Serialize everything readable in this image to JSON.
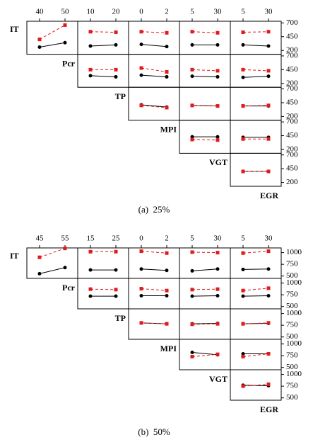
{
  "chart_data": [
    {
      "type": "interaction_matrix",
      "caption": "(a)  25%",
      "factors": [
        "IT",
        "Pcr",
        "TP",
        "MPI",
        "VGT",
        "EGR"
      ],
      "xlevels": [
        [
          40,
          50
        ],
        [
          10,
          20
        ],
        [
          0,
          2
        ],
        [
          5,
          30
        ],
        [
          5,
          30
        ]
      ],
      "ylim": [
        130,
        730
      ],
      "yticks": [
        200,
        450,
        700
      ],
      "series": [
        {
          "color": "#000000",
          "marker": "circle",
          "dash": false
        },
        {
          "color": "#e31a1c",
          "marker": "square",
          "dash": true
        }
      ],
      "panels": [
        {
          "row": 0,
          "col": 0,
          "values": [
            [
              260,
              340
            ],
            [
              400,
              660
            ]
          ]
        },
        {
          "row": 0,
          "col": 1,
          "values": [
            [
              280,
              300
            ],
            [
              540,
              530
            ]
          ]
        },
        {
          "row": 0,
          "col": 2,
          "values": [
            [
              310,
              270
            ],
            [
              540,
              520
            ]
          ]
        },
        {
          "row": 0,
          "col": 3,
          "values": [
            [
              300,
              300
            ],
            [
              540,
              520
            ]
          ]
        },
        {
          "row": 0,
          "col": 4,
          "values": [
            [
              300,
              280
            ],
            [
              530,
              540
            ]
          ]
        },
        {
          "row": 1,
          "col": 1,
          "values": [
            [
              340,
              320
            ],
            [
              450,
              450
            ]
          ]
        },
        {
          "row": 1,
          "col": 2,
          "values": [
            [
              350,
              320
            ],
            [
              480,
              410
            ]
          ]
        },
        {
          "row": 1,
          "col": 3,
          "values": [
            [
              330,
              320
            ],
            [
              450,
              430
            ]
          ]
        },
        {
          "row": 1,
          "col": 4,
          "values": [
            [
              310,
              330
            ],
            [
              450,
              430
            ]
          ]
        },
        {
          "row": 2,
          "col": 2,
          "values": [
            [
              410,
              370
            ],
            [
              400,
              360
            ]
          ]
        },
        {
          "row": 2,
          "col": 3,
          "values": [
            [
              400,
              390
            ],
            [
              400,
              390
            ]
          ]
        },
        {
          "row": 2,
          "col": 4,
          "values": [
            [
              390,
              390
            ],
            [
              390,
              400
            ]
          ]
        },
        {
          "row": 3,
          "col": 3,
          "values": [
            [
              430,
              430
            ],
            [
              380,
              370
            ]
          ]
        },
        {
          "row": 3,
          "col": 4,
          "values": [
            [
              420,
              420
            ],
            [
              390,
              390
            ]
          ]
        },
        {
          "row": 4,
          "col": 4,
          "values": [
            [
              400,
              400
            ],
            [
              400,
              400
            ]
          ]
        }
      ]
    },
    {
      "type": "interaction_matrix",
      "caption": "(b)  50%",
      "factors": [
        "IT",
        "Pcr",
        "TP",
        "MPI",
        "VGT",
        "EGR"
      ],
      "xlevels": [
        [
          45,
          55
        ],
        [
          15,
          25
        ],
        [
          0,
          2
        ],
        [
          5,
          30
        ],
        [
          5,
          30
        ]
      ],
      "ylim": [
        450,
        1100
      ],
      "yticks": [
        500,
        750,
        1000
      ],
      "series": [
        {
          "color": "#000000",
          "marker": "circle",
          "dash": false
        },
        {
          "color": "#e31a1c",
          "marker": "square",
          "dash": true
        }
      ],
      "panels": [
        {
          "row": 0,
          "col": 0,
          "values": [
            [
              550,
              680
            ],
            [
              900,
              1090
            ]
          ]
        },
        {
          "row": 0,
          "col": 1,
          "values": [
            [
              630,
              630
            ],
            [
              1020,
              1020
            ]
          ]
        },
        {
          "row": 0,
          "col": 2,
          "values": [
            [
              650,
              620
            ],
            [
              1030,
              990
            ]
          ]
        },
        {
          "row": 0,
          "col": 3,
          "values": [
            [
              610,
              650
            ],
            [
              1010,
              1000
            ]
          ]
        },
        {
          "row": 0,
          "col": 4,
          "values": [
            [
              640,
              650
            ],
            [
              990,
              1030
            ]
          ]
        },
        {
          "row": 1,
          "col": 1,
          "values": [
            [
              720,
              720
            ],
            [
              870,
              860
            ]
          ]
        },
        {
          "row": 1,
          "col": 2,
          "values": [
            [
              730,
              730
            ],
            [
              880,
              840
            ]
          ]
        },
        {
          "row": 1,
          "col": 3,
          "values": [
            [
              720,
              730
            ],
            [
              860,
              870
            ]
          ]
        },
        {
          "row": 1,
          "col": 4,
          "values": [
            [
              720,
              730
            ],
            [
              840,
              890
            ]
          ]
        },
        {
          "row": 2,
          "col": 2,
          "values": [
            [
              800,
              780
            ],
            [
              800,
              780
            ]
          ]
        },
        {
          "row": 2,
          "col": 3,
          "values": [
            [
              780,
              790
            ],
            [
              770,
              780
            ]
          ]
        },
        {
          "row": 2,
          "col": 4,
          "values": [
            [
              780,
              790
            ],
            [
              780,
              800
            ]
          ]
        },
        {
          "row": 3,
          "col": 3,
          "values": [
            [
              820,
              770
            ],
            [
              730,
              780
            ]
          ]
        },
        {
          "row": 3,
          "col": 4,
          "values": [
            [
              790,
              790
            ],
            [
              730,
              790
            ]
          ]
        },
        {
          "row": 4,
          "col": 4,
          "values": [
            [
              770,
              760
            ],
            [
              750,
              790
            ]
          ]
        }
      ]
    }
  ]
}
